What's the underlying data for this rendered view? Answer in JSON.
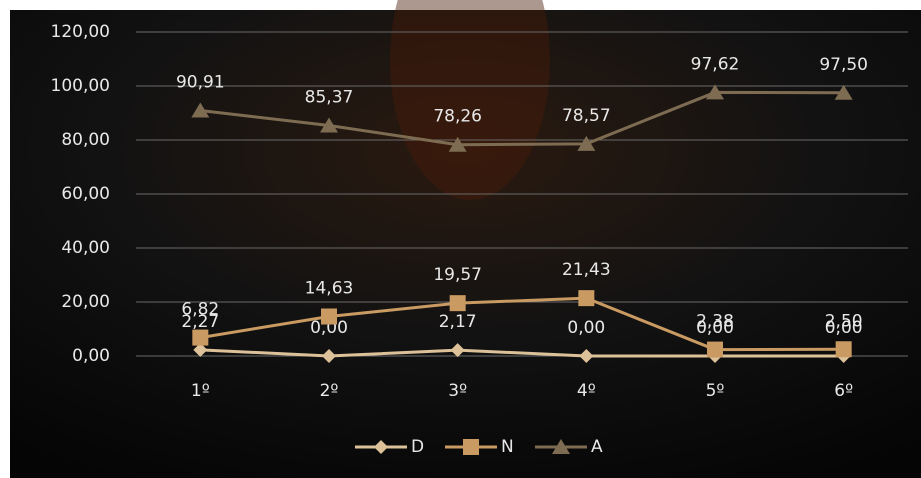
{
  "chart_data": {
    "type": "line",
    "categories": [
      "1º",
      "2º",
      "3º",
      "4º",
      "5º",
      "6º"
    ],
    "series": [
      {
        "name": "D",
        "color": "#dcc199",
        "marker": "diamond",
        "values": [
          2.27,
          0.0,
          2.17,
          0.0,
          0.0,
          0.0
        ],
        "value_labels": [
          "2,27",
          "0,00",
          "2,17",
          "0,00",
          "0,00",
          "0,00"
        ]
      },
      {
        "name": "N",
        "color": "#c99a62",
        "marker": "square",
        "values": [
          6.82,
          14.63,
          19.57,
          21.43,
          2.38,
          2.5
        ],
        "value_labels": [
          "6,82",
          "14,63",
          "19,57",
          "21,43",
          "2,38",
          "2,50"
        ]
      },
      {
        "name": "A",
        "color": "#7d6c52",
        "marker": "triangle",
        "values": [
          90.91,
          85.37,
          78.26,
          78.57,
          97.62,
          97.5
        ],
        "value_labels": [
          "90,91",
          "85,37",
          "78,26",
          "78,57",
          "97,62",
          "97,50"
        ]
      }
    ],
    "ylim": [
      0,
      120
    ],
    "yticks": [
      {
        "value": 0,
        "label": "0,00"
      },
      {
        "value": 20,
        "label": "20,00"
      },
      {
        "value": 40,
        "label": "40,00"
      },
      {
        "value": 60,
        "label": "60,00"
      },
      {
        "value": 80,
        "label": "80,00"
      },
      {
        "value": 100,
        "label": "100,00"
      },
      {
        "value": 120,
        "label": "120,00"
      }
    ],
    "grid": true
  }
}
